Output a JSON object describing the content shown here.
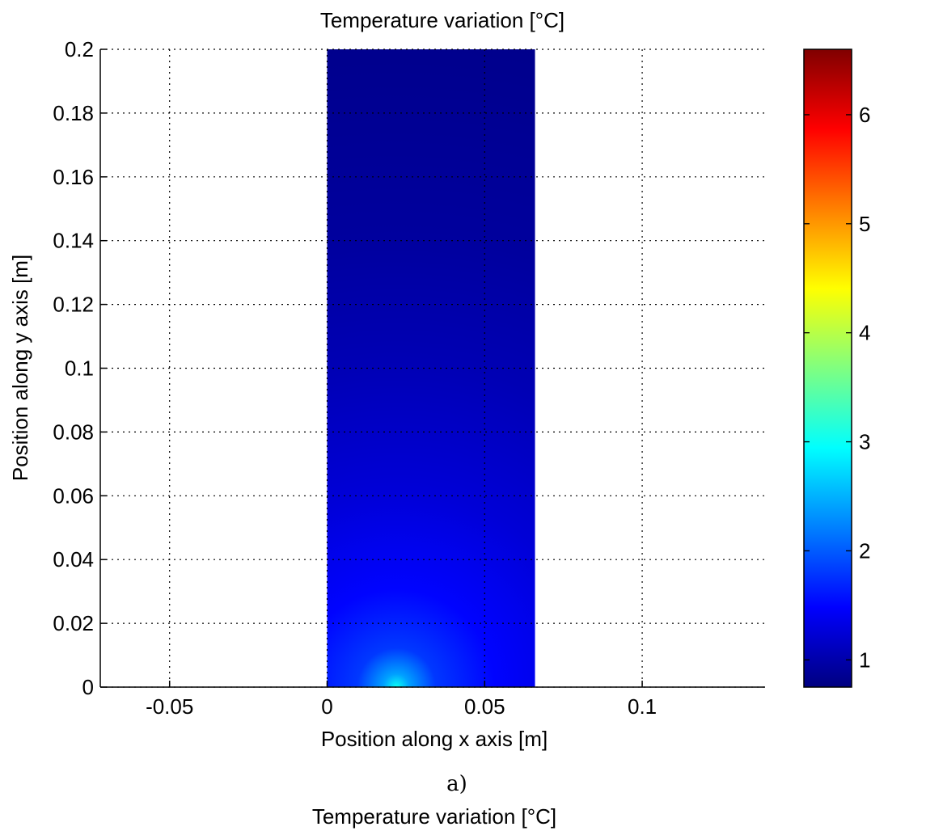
{
  "chart_data": {
    "type": "heatmap",
    "title": "Temperature variation  [°C]",
    "xlabel": "Position along x axis [m]",
    "ylabel": "Position along y axis [m]",
    "xlim": [
      -0.072,
      0.139
    ],
    "ylim": [
      0,
      0.2
    ],
    "x_ticks": [
      -0.05,
      0,
      0.05,
      0.1
    ],
    "x_tick_labels": [
      "-0.05",
      "0",
      "0.05",
      "0.1"
    ],
    "y_ticks": [
      0,
      0.02,
      0.04,
      0.06,
      0.08,
      0.1,
      0.12,
      0.14,
      0.16,
      0.18,
      0.2
    ],
    "y_tick_labels": [
      "0",
      "0.02",
      "0.04",
      "0.06",
      "0.08",
      "0.1",
      "0.12",
      "0.14",
      "0.16",
      "0.18",
      "0.2"
    ],
    "grid": true,
    "domain_x": [
      0,
      0.066
    ],
    "domain_y": [
      0,
      0.2
    ],
    "hotspot": {
      "x": 0.022,
      "y": 0,
      "value": 3.0
    },
    "colorbar": {
      "colormap": "jet",
      "range": [
        0.75,
        6.6
      ],
      "ticks": [
        1,
        2,
        3,
        4,
        5,
        6
      ],
      "tick_labels": [
        "1",
        "2",
        "3",
        "4",
        "5",
        "6"
      ]
    }
  },
  "caption": "a)",
  "next_title": "Temperature variation  [°C]"
}
